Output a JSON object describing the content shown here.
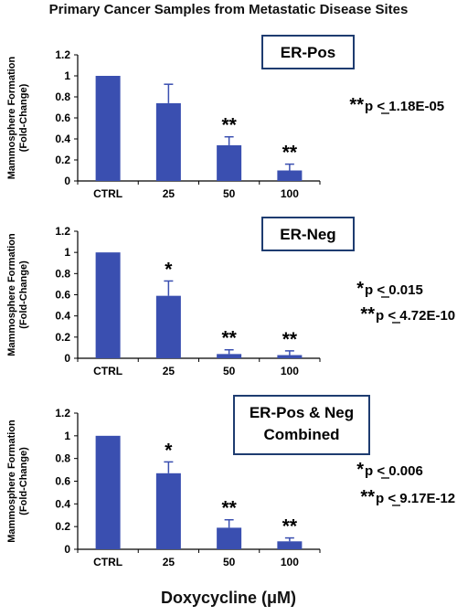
{
  "title": "Primary Cancer Samples from Metastatic Disease Sites",
  "xlabel": "Doxycycline (μM)",
  "chart_data": [
    {
      "type": "bar",
      "title": "ER-Pos",
      "categories": [
        "CTRL",
        "25",
        "50",
        "100"
      ],
      "values": [
        1.0,
        0.74,
        0.34,
        0.1
      ],
      "errors": [
        0.0,
        0.18,
        0.08,
        0.06
      ],
      "significance": [
        "",
        "",
        "**",
        "**"
      ],
      "ylabel": [
        "Mammosphere Formation",
        "(Fold-Change)"
      ],
      "ylim": [
        0,
        1.2
      ],
      "yticks": [
        "0",
        "0.2",
        "0.4",
        "0.6",
        "0.8",
        "1",
        "1.2"
      ],
      "color": "#3a4fb0",
      "pvalues": [
        {
          "stars": "**",
          "text": "p < 1.18E-05"
        }
      ]
    },
    {
      "type": "bar",
      "title": "ER-Neg",
      "categories": [
        "CTRL",
        "25",
        "50",
        "100"
      ],
      "values": [
        1.0,
        0.59,
        0.04,
        0.03
      ],
      "errors": [
        0.0,
        0.14,
        0.04,
        0.04
      ],
      "significance": [
        "",
        "*",
        "**",
        "**"
      ],
      "ylabel": [
        "Mammosphere Formation",
        "(Fold-Change)"
      ],
      "ylim": [
        0,
        1.2
      ],
      "yticks": [
        "0",
        "0.2",
        "0.4",
        "0.6",
        "0.8",
        "1",
        "1.2"
      ],
      "color": "#3a4fb0",
      "pvalues": [
        {
          "stars": "*",
          "text": "p < 0.015"
        },
        {
          "stars": "**",
          "text": "p < 4.72E-10"
        }
      ]
    },
    {
      "type": "bar",
      "title": "ER-Pos & Neg Combined",
      "title_lines": [
        "ER-Pos & Neg",
        "Combined"
      ],
      "categories": [
        "CTRL",
        "25",
        "50",
        "100"
      ],
      "values": [
        1.0,
        0.67,
        0.19,
        0.07
      ],
      "errors": [
        0.0,
        0.1,
        0.07,
        0.03
      ],
      "significance": [
        "",
        "*",
        "**",
        "**"
      ],
      "ylabel": [
        "Mammosphere Formation",
        "(Fold-Change)"
      ],
      "ylim": [
        0,
        1.2
      ],
      "yticks": [
        "0",
        "0.2",
        "0.4",
        "0.6",
        "0.8",
        "1",
        "1.2"
      ],
      "color": "#3a4fb0",
      "pvalues": [
        {
          "stars": "*",
          "text": "p < 0.006"
        },
        {
          "stars": "**",
          "text": "p < 9.17E-12"
        }
      ]
    }
  ]
}
